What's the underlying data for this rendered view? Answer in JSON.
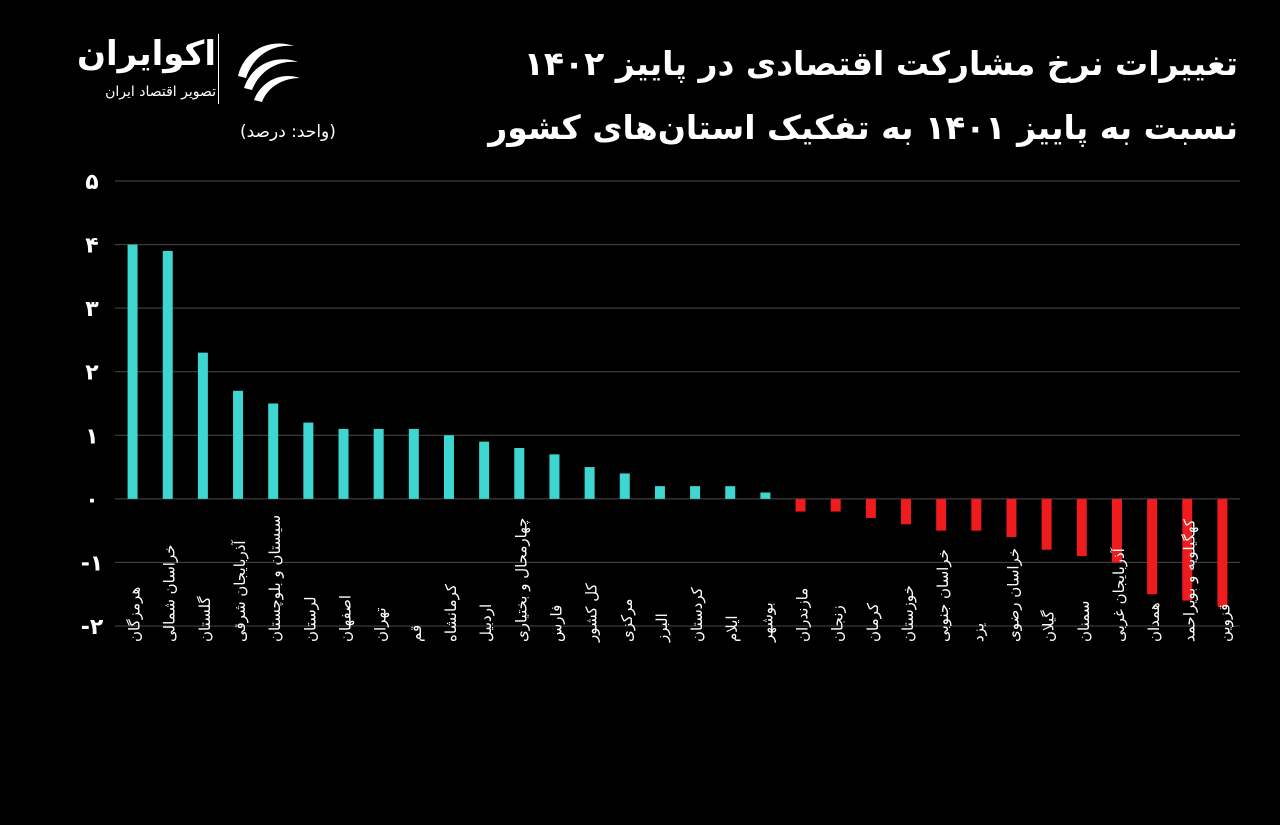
{
  "header": {
    "title_line1": "تغییرات نرخ مشارکت اقتصادی در پاییز ۱۴۰۲",
    "title_line2": "نسبت به پاییز ۱۴۰۱ به تفکیک استان‌های کشور",
    "unit_note": "(واحد: درصد)"
  },
  "brand": {
    "name": "اکوایران",
    "tagline": "تصویر اقتصاد ایران",
    "logo_icon": "ecoiran-swirl-icon"
  },
  "colors": {
    "positive": "#3dd6d0",
    "negative": "#ee1c1c",
    "gridline": "#4a4a4a",
    "axis_text": "#ffffff"
  },
  "chart_data": {
    "type": "bar",
    "title": "تغییرات نرخ مشارکت اقتصادی در پاییز ۱۴۰۲ نسبت به پاییز ۱۴۰۱ به تفکیک استان‌های کشور",
    "ylabel": "",
    "xlabel": "",
    "ylim": [
      -2,
      5
    ],
    "yticks": [
      5,
      4,
      3,
      2,
      1,
      0,
      -1,
      -2
    ],
    "ytick_labels": [
      "۵",
      "۴",
      "۳",
      "۲",
      "۱",
      "۰",
      "-۱",
      "-۲"
    ],
    "grid": true,
    "legend": "none",
    "categories": [
      "هرمزگان",
      "خراسان شمالی",
      "گلستان",
      "آذربایجان شرقی",
      "سیستان و بلوچستان",
      "لرستان",
      "اصفهان",
      "تهران",
      "قم",
      "کرمانشاه",
      "اردبیل",
      "چهارمحال و بختیاری",
      "فارس",
      "کل کشور",
      "مرکزی",
      "البرز",
      "کردستان",
      "ایلام",
      "بوشهر",
      "مازندران",
      "زنجان",
      "کرمان",
      "خوزستان",
      "خراسان جنوبی",
      "یزد",
      "خراسان رضوی",
      "گیلان",
      "سمنان",
      "آذربایجان غربی",
      "همدان",
      "کهگیلویه و بویراحمد",
      "قزوین"
    ],
    "values": [
      4.0,
      3.9,
      2.3,
      1.7,
      1.5,
      1.2,
      1.1,
      1.1,
      1.1,
      1.0,
      0.9,
      0.8,
      0.7,
      0.5,
      0.4,
      0.2,
      0.2,
      0.2,
      0.1,
      -0.2,
      -0.2,
      -0.3,
      -0.4,
      -0.5,
      -0.5,
      -0.6,
      -0.8,
      -0.9,
      -1.0,
      -1.5,
      -1.6,
      -1.7
    ]
  }
}
